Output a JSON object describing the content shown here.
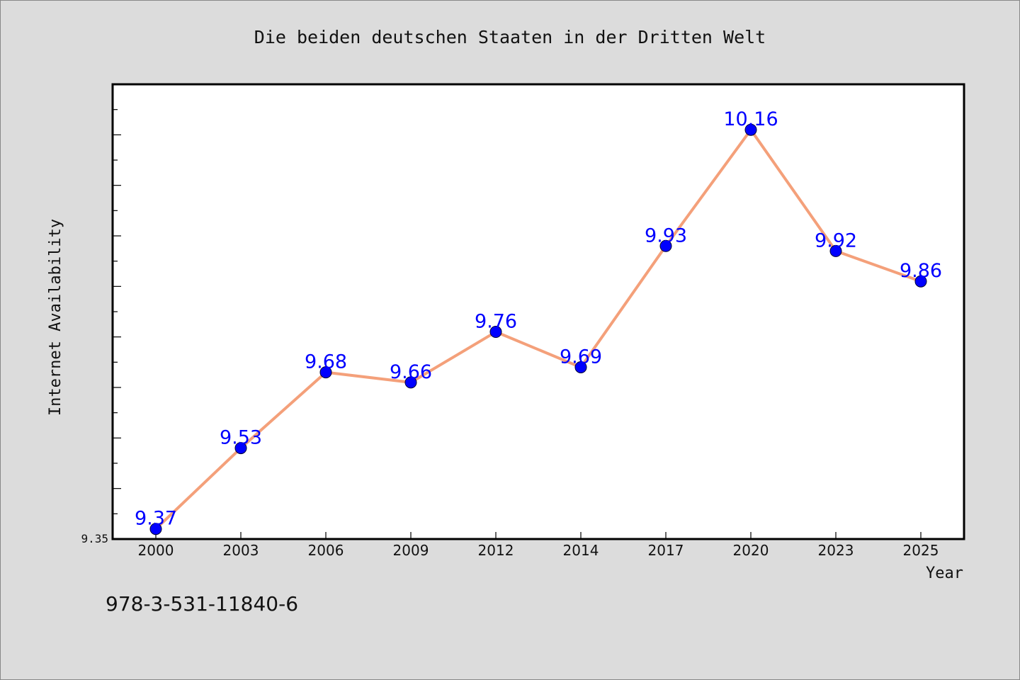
{
  "chart_data": {
    "type": "line",
    "title": "Die beiden deutschen Staaten in der Dritten Welt",
    "xlabel": "Year",
    "ylabel": "Internet Availability",
    "categories": [
      "2000",
      "2003",
      "2006",
      "2009",
      "2012",
      "2014",
      "2017",
      "2020",
      "2023",
      "2025"
    ],
    "values": [
      9.37,
      9.53,
      9.68,
      9.66,
      9.76,
      9.69,
      9.93,
      10.16,
      9.92,
      9.86
    ],
    "data_labels": [
      "9.37",
      "9.53",
      "9.68",
      "9.66",
      "9.76",
      "9.69",
      "9.93",
      "10.16",
      "9.92",
      "9.86"
    ],
    "y_tick_labels": [
      "9.35"
    ],
    "ylim": [
      9.35,
      10.25
    ],
    "grid": false,
    "line_color": "#f4a07a",
    "marker_color": "#0000ff",
    "label_color": "#0000ff"
  },
  "footer": {
    "isbn": "978-3-531-11840-6"
  },
  "colors": {
    "background": "#dcdcdc",
    "plot_background": "#ffffff",
    "axis": "#000000"
  }
}
